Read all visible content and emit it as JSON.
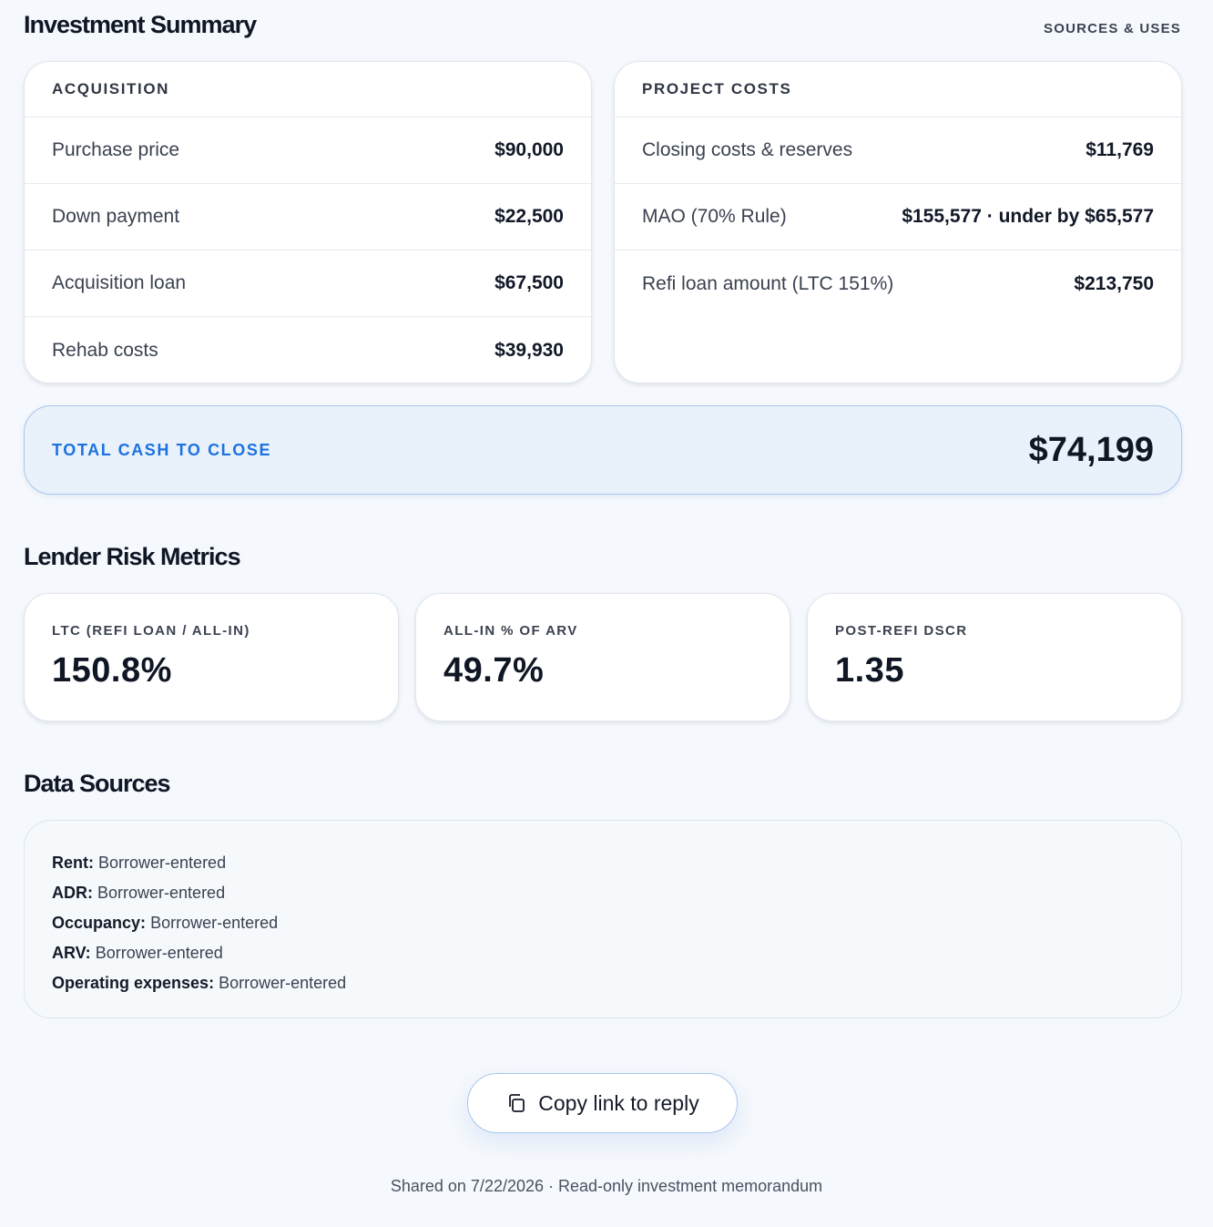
{
  "investment_summary": {
    "title": "Investment Summary",
    "sources_uses_label": "SOURCES & USES",
    "acquisition": {
      "header": "ACQUISITION",
      "rows": [
        {
          "label": "Purchase price",
          "value": "$90,000"
        },
        {
          "label": "Down payment",
          "value": "$22,500"
        },
        {
          "label": "Acquisition loan",
          "value": "$67,500"
        },
        {
          "label": "Rehab costs",
          "value": "$39,930"
        }
      ]
    },
    "project_costs": {
      "header": "PROJECT COSTS",
      "rows": [
        {
          "label": "Closing costs & reserves",
          "value": "$11,769"
        },
        {
          "label": "MAO (70% Rule)",
          "value": "$155,577 · under by $65,577"
        },
        {
          "label": "Refi loan amount (LTC 151%)",
          "value": "$213,750"
        }
      ]
    },
    "total": {
      "label": "TOTAL CASH TO CLOSE",
      "value": "$74,199"
    }
  },
  "lender_risk": {
    "title": "Lender Risk Metrics",
    "metrics": [
      {
        "label": "LTC (REFI LOAN / ALL-IN)",
        "value": "150.8%"
      },
      {
        "label": "ALL-IN % OF ARV",
        "value": "49.7%"
      },
      {
        "label": "POST-REFI DSCR",
        "value": "1.35"
      }
    ]
  },
  "data_sources": {
    "title": "Data Sources",
    "items": [
      {
        "key": "Rent:",
        "value": "Borrower-entered"
      },
      {
        "key": "ADR:",
        "value": "Borrower-entered"
      },
      {
        "key": "Occupancy:",
        "value": "Borrower-entered"
      },
      {
        "key": "ARV:",
        "value": "Borrower-entered"
      },
      {
        "key": "Operating expenses:",
        "value": "Borrower-entered"
      }
    ]
  },
  "actions": {
    "copy_link_label": "Copy link to reply",
    "copy_icon": "copy-icon"
  },
  "footer": {
    "text": "Shared on 7/22/2026 · Read-only investment memorandum"
  },
  "colors": {
    "accent": "#1d72e0",
    "background": "#f5f8fc",
    "total_card_bg": "#e9f1fb"
  }
}
